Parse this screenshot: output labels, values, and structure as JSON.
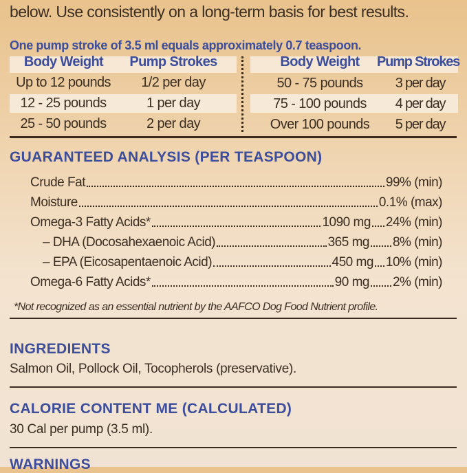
{
  "intro": "below. Use consistently on a long-term basis for best results.",
  "pump_note": "One pump stroke of 3.5 ml equals approximately 0.7 teaspoon.",
  "dosage": {
    "headers": [
      "Body Weight",
      "Pump Strokes"
    ],
    "left": [
      [
        "Up to 12 pounds",
        "1/2 per day"
      ],
      [
        "12 - 25 pounds",
        "1 per day"
      ],
      [
        "25 - 50 pounds",
        "2 per day"
      ]
    ],
    "right": [
      [
        "50 - 75 pounds",
        "3 per day"
      ],
      [
        "75 - 100 pounds",
        "4 per day"
      ],
      [
        "Over 100 pounds",
        "5 per day"
      ]
    ]
  },
  "analysis": {
    "title": "GUARANTEED ANALYSIS (PER TEASPOON)",
    "rows": [
      {
        "label": "Crude Fat",
        "amount": "",
        "value": "99% (min)"
      },
      {
        "label": "Moisture",
        "amount": "",
        "value": "0.1% (max)"
      },
      {
        "label": "Omega-3 Fatty Acids*",
        "amount": "1090 mg",
        "value": "24% (min)"
      },
      {
        "label": "– DHA (Docosahexaenoic Acid)",
        "amount": "365 mg",
        "value": "8% (min)"
      },
      {
        "label": "– EPA (Eicosapentaenoic Acid)",
        "amount": "450 mg",
        "value": "10% (min)"
      },
      {
        "label": "Omega-6 Fatty Acids*",
        "amount": "90 mg",
        "value": "2% (min)"
      }
    ],
    "footnote": "*Not recognized as an essential nutrient by the AAFCO Dog Food Nutrient profile."
  },
  "ingredients": {
    "title": "INGREDIENTS",
    "text": "Salmon Oil, Pollock Oil, Tocopherols (preservative)."
  },
  "calories": {
    "title": "CALORIE CONTENT ME (CALCULATED)",
    "text": "30 Cal per pump (3.5 ml)."
  },
  "warnings": {
    "title": "WARNINGS"
  }
}
